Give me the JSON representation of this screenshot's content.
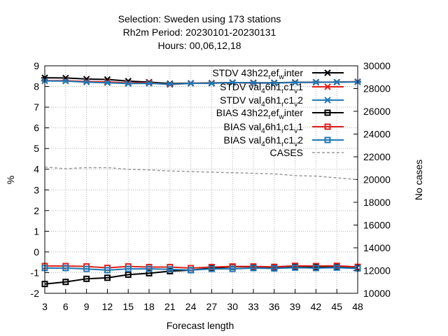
{
  "chart_data": {
    "type": "line",
    "title_lines": [
      "Selection: Sweden using   173 stations",
      "Rh2m   Period: 20230101-20230131",
      "Hours: 00,06,12,18"
    ],
    "xlabel": "Forecast length",
    "ylabel": "%",
    "y2label": "No cases",
    "x": [
      3,
      6,
      9,
      12,
      15,
      18,
      21,
      24,
      27,
      30,
      33,
      36,
      39,
      42,
      45,
      48
    ],
    "xlim": [
      3,
      48
    ],
    "ylim": [
      -2,
      9
    ],
    "y2lim": [
      10000,
      30000
    ],
    "xticks": [
      3,
      6,
      9,
      12,
      15,
      18,
      21,
      24,
      27,
      30,
      33,
      36,
      39,
      42,
      45,
      48
    ],
    "yticks": [
      -2,
      -1,
      0,
      1,
      2,
      3,
      4,
      5,
      6,
      7,
      8,
      9
    ],
    "y2ticks": [
      10000,
      12000,
      14000,
      16000,
      18000,
      20000,
      22000,
      24000,
      26000,
      28000,
      30000
    ],
    "grid": true,
    "legend_position": "top-right",
    "series": [
      {
        "name": "STDV 43h22_ref_winter",
        "label_main": "STDV 43h22",
        "label_sub": "ref",
        "label_mid": "w",
        "label_end": "inter",
        "sub_pos": [
          "r",
          "ef"
        ],
        "color": "#000000",
        "marker": "star",
        "axis": "y1",
        "values": [
          8.42,
          8.41,
          8.36,
          8.34,
          8.26,
          8.21,
          8.14,
          8.16,
          8.17,
          8.19,
          8.18,
          8.18,
          8.2,
          8.21,
          8.21,
          8.23
        ]
      },
      {
        "name": "STDV val_46h1_rc1_v1",
        "color": "#e0201b",
        "marker": "star",
        "axis": "y1",
        "values": [
          8.28,
          8.28,
          8.24,
          8.22,
          8.17,
          8.18,
          8.09,
          8.16,
          8.16,
          8.19,
          8.16,
          8.17,
          8.19,
          8.2,
          8.21,
          8.23
        ]
      },
      {
        "name": "STDV val_46h1_rc1_v2",
        "color": "#1f78b4",
        "marker": "star",
        "axis": "y1",
        "values": [
          8.27,
          8.26,
          8.21,
          8.18,
          8.14,
          8.15,
          8.11,
          8.15,
          8.15,
          8.19,
          8.17,
          8.17,
          8.19,
          8.2,
          8.21,
          8.22
        ]
      },
      {
        "name": "BIAS 43h22_ref_winter",
        "color": "#000000",
        "marker": "square",
        "axis": "y1",
        "values": [
          -1.55,
          -1.45,
          -1.3,
          -1.25,
          -1.1,
          -1.03,
          -0.93,
          -0.88,
          -0.78,
          -0.72,
          -0.72,
          -0.75,
          -0.7,
          -0.72,
          -0.73,
          -0.78
        ]
      },
      {
        "name": "BIAS val_46h1_rc1_v1",
        "color": "#e0201b",
        "marker": "square",
        "axis": "y1",
        "values": [
          -0.68,
          -0.68,
          -0.7,
          -0.77,
          -0.7,
          -0.73,
          -0.73,
          -0.78,
          -0.73,
          -0.7,
          -0.7,
          -0.72,
          -0.67,
          -0.68,
          -0.67,
          -0.72
        ]
      },
      {
        "name": "BIAS val_46h1_rc1_v2",
        "color": "#1f78b4",
        "marker": "square",
        "axis": "y1",
        "values": [
          -0.78,
          -0.78,
          -0.82,
          -0.88,
          -0.82,
          -0.82,
          -0.84,
          -0.88,
          -0.82,
          -0.82,
          -0.78,
          -0.8,
          -0.76,
          -0.78,
          -0.76,
          -0.8
        ]
      },
      {
        "name": "CASES",
        "color": "#999999",
        "marker": "none",
        "dashed": true,
        "axis": "y2",
        "values": [
          21100,
          20950,
          21050,
          21050,
          20900,
          20850,
          20750,
          20700,
          20650,
          20600,
          20550,
          20500,
          20350,
          20300,
          20150,
          20000
        ]
      }
    ],
    "legend": [
      {
        "pre": "STDV 43h22",
        "sub1": "r",
        "mid": "ef",
        "sub2": "w",
        "post": "inter"
      },
      {
        "pre": "STDV val",
        "sub1": "4",
        "mid": "6h1",
        "sub2": "r",
        "mid2": "c1",
        "sub3": "v",
        "post": "1"
      },
      {
        "pre": "STDV val",
        "sub1": "4",
        "mid": "6h1",
        "sub2": "r",
        "mid2": "c1",
        "sub3": "v",
        "post": "2"
      },
      {
        "pre": "BIAS 43h22",
        "sub1": "r",
        "mid": "ef",
        "sub2": "w",
        "post": "inter"
      },
      {
        "pre": "BIAS val",
        "sub1": "4",
        "mid": "6h1",
        "sub2": "r",
        "mid2": "c1",
        "sub3": "v",
        "post": "1"
      },
      {
        "pre": "BIAS val",
        "sub1": "4",
        "mid": "6h1",
        "sub2": "r",
        "mid2": "c1",
        "sub3": "v",
        "post": "2"
      },
      {
        "pre": "CASES"
      }
    ]
  }
}
